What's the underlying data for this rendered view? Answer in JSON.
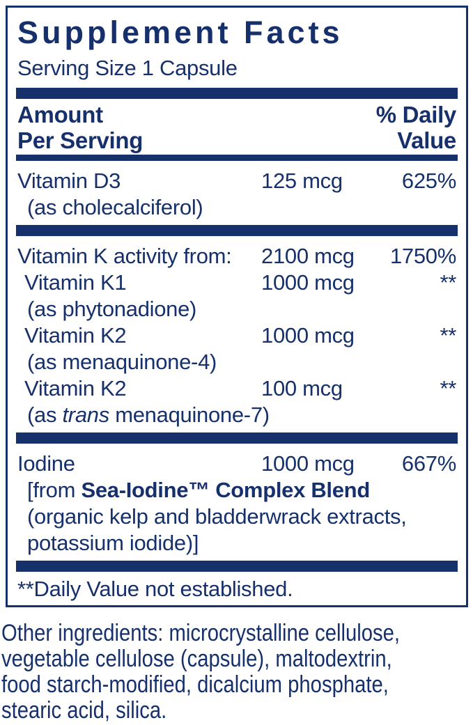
{
  "colors": {
    "navy": "#16306c",
    "background": "#ffffff"
  },
  "label": {
    "title": "Supplement Facts",
    "serving_size": "Serving Size 1 Capsule",
    "header": {
      "amount_line1": "Amount",
      "amount_line2": "Per Serving",
      "dv_line1": "% Daily",
      "dv_line2": "Value"
    },
    "sections": [
      {
        "rows": [
          {
            "name": [
              {
                "text": "Vitamin D3"
              }
            ],
            "amount": "125 mcg",
            "dv": "625%",
            "subs": [
              [
                {
                  "text": "(as cholecalciferol)"
                }
              ]
            ]
          }
        ]
      },
      {
        "rows": [
          {
            "name": [
              {
                "text": "Vitamin K activity from:"
              }
            ],
            "amount": "2100 mcg",
            "dv": "1750%",
            "subs": []
          },
          {
            "name": [
              {
                "text": "Vitamin K1"
              }
            ],
            "indent": true,
            "amount": "1000 mcg",
            "dv": "**",
            "subs": [
              [
                {
                  "text": "(as phytonadione)"
                }
              ]
            ]
          },
          {
            "name": [
              {
                "text": "Vitamin K2"
              }
            ],
            "indent": true,
            "amount": "1000 mcg",
            "dv": "**",
            "subs": [
              [
                {
                  "text": "(as menaquinone-4)"
                }
              ]
            ]
          },
          {
            "name": [
              {
                "text": "Vitamin K2"
              }
            ],
            "indent": true,
            "amount": "100 mcg",
            "dv": "**",
            "subs": [
              [
                {
                  "text": "(as "
                },
                {
                  "text": "trans",
                  "italic": true
                },
                {
                  "text": " menaquinone-7)"
                }
              ]
            ]
          }
        ]
      },
      {
        "rows": [
          {
            "name": [
              {
                "text": "Iodine"
              }
            ],
            "amount": "1000 mcg",
            "dv": "667%",
            "subs": [
              [
                {
                  "text": "[from "
                },
                {
                  "text": "Sea-Iodine™ Complex Blend",
                  "bold": true
                }
              ],
              [
                {
                  "text": "(organic kelp and bladderwrack extracts,"
                }
              ],
              [
                {
                  "text": "potassium iodide)]"
                }
              ]
            ]
          }
        ]
      }
    ],
    "footnote": "**Daily Value not established."
  },
  "other_ingredients": {
    "lines": [
      "Other ingredients: microcrystalline cellulose,",
      "vegetable cellulose (capsule), maltodextrin,",
      "food starch-modified, dicalcium phosphate,",
      "stearic acid, silica."
    ]
  }
}
